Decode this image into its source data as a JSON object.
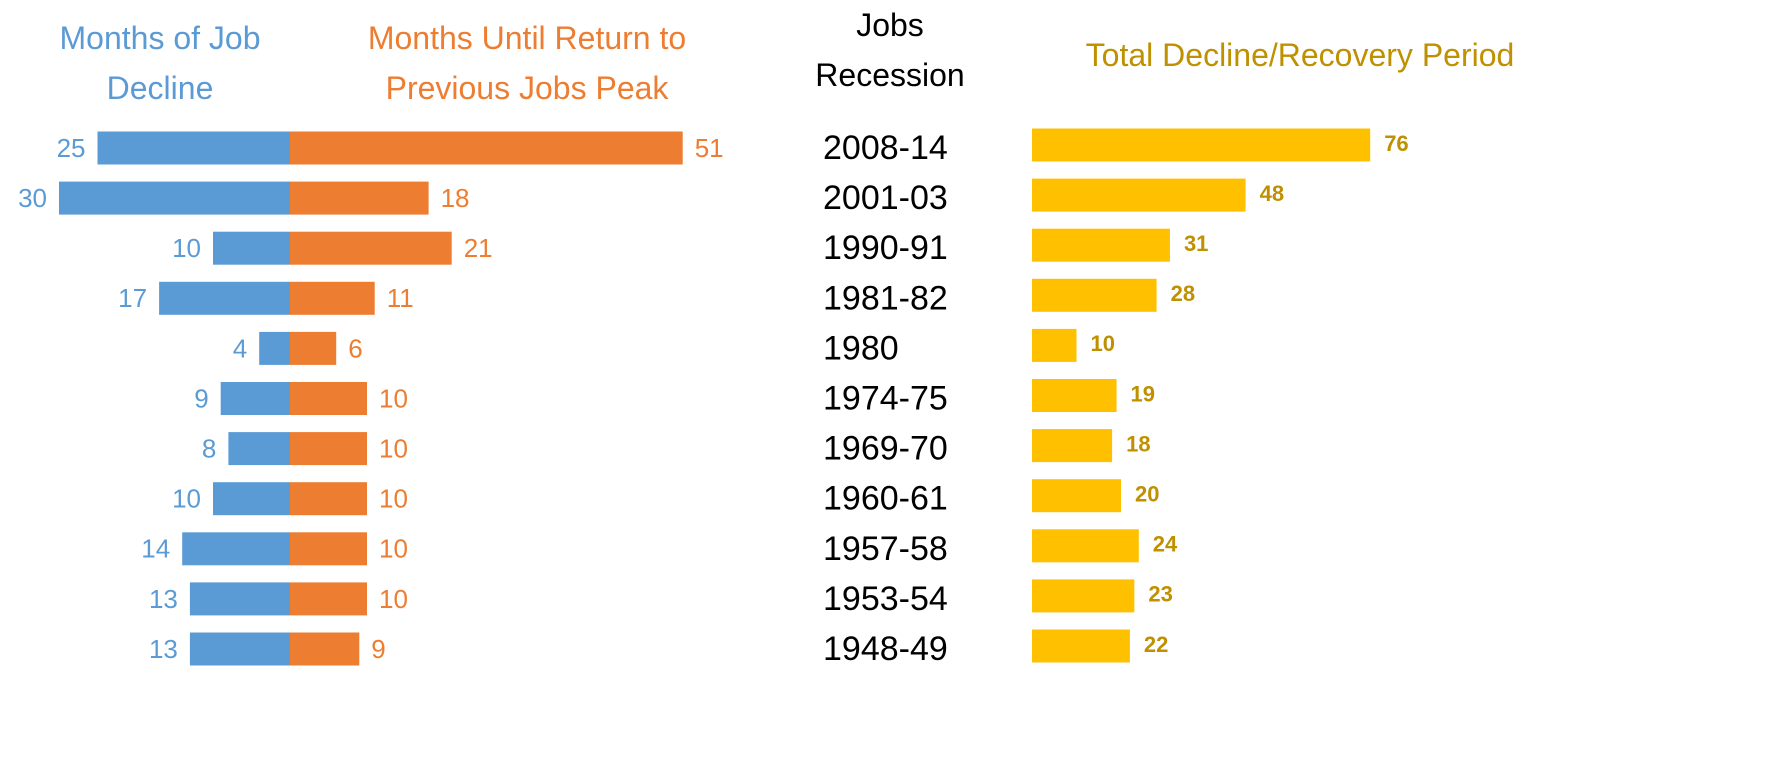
{
  "chart_data": [
    {
      "type": "butterfly",
      "series": [
        {
          "name": "Months of Job Decline",
          "color": "#5b9bd5",
          "values": [
            25,
            30,
            10,
            17,
            4,
            9,
            8,
            10,
            14,
            13,
            13
          ]
        },
        {
          "name": "Months Until Return to Previous Jobs Peak",
          "color": "#ed7d31",
          "values": [
            51,
            18,
            21,
            11,
            6,
            10,
            10,
            10,
            10,
            10,
            9
          ]
        }
      ]
    },
    {
      "type": "bar",
      "categories_title": "Jobs Recession",
      "categories": [
        "2008-14",
        "2001-03",
        "1990-91",
        "1981-82",
        "1980",
        "1974-75",
        "1969-70",
        "1960-61",
        "1957-58",
        "1953-54",
        "1948-49"
      ],
      "title": "Total Decline/Recovery Period",
      "color": "#ffc000",
      "label_color": "#bf9000",
      "values": [
        76,
        48,
        31,
        28,
        10,
        19,
        18,
        20,
        24,
        23,
        22
      ]
    }
  ]
}
